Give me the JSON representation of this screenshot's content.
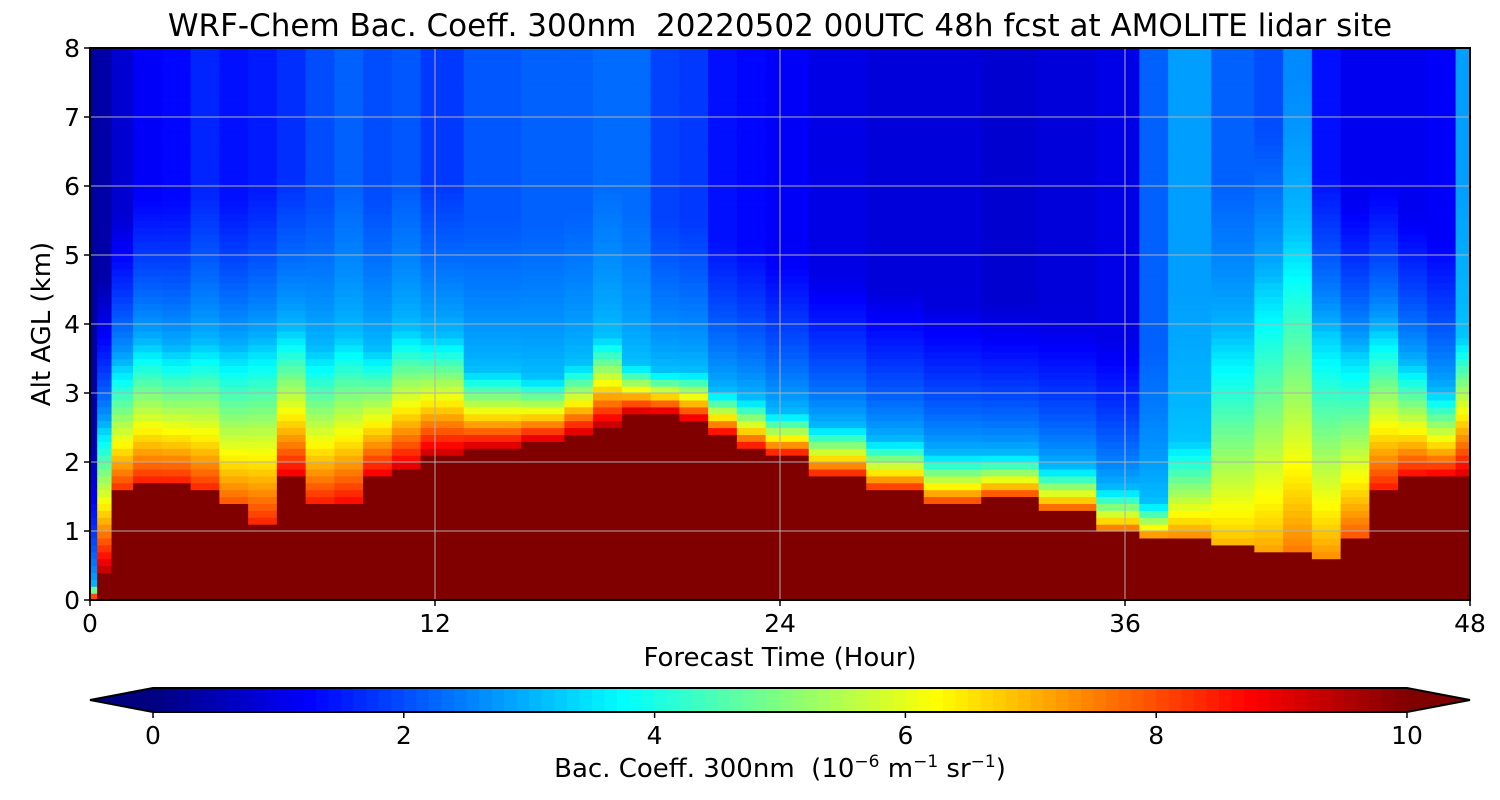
{
  "chart_data": {
    "type": "heatmap",
    "title": "WRF-Chem Bac. Coeff. 300nm  20220502 00UTC 48h fcst at AMOLITE lidar site",
    "xlabel": "Forecast Time (Hour)",
    "ylabel": "Alt AGL (km)",
    "xlim": [
      0,
      48
    ],
    "ylim": [
      0,
      8
    ],
    "xticks": [
      0,
      12,
      24,
      36,
      48
    ],
    "yticks": [
      0,
      1,
      2,
      3,
      4,
      5,
      6,
      7,
      8
    ],
    "grid": true,
    "colormap": "jet",
    "colorbar": {
      "orientation": "horizontal",
      "range": [
        0,
        10
      ],
      "ticks": [
        0,
        2,
        4,
        6,
        8,
        10
      ],
      "extend": "both",
      "label_prefix": "Bac. Coeff. 300nm  (10",
      "label_exp1": "−6",
      "label_mid": " m",
      "label_exp2": "−1",
      "label_mid2": " sr",
      "label_exp3": "−1",
      "label_suffix": ")"
    },
    "x": [
      0,
      0.5,
      1,
      2,
      3,
      4,
      5,
      6,
      7,
      8,
      9,
      10,
      11,
      12,
      14,
      16,
      17,
      18,
      19,
      20,
      21,
      22,
      23,
      24,
      26,
      28,
      30,
      32,
      34,
      36,
      37,
      38,
      40,
      41,
      42,
      43,
      44,
      45,
      46,
      47,
      48
    ],
    "y": [
      0,
      0.5,
      1,
      1.5,
      2,
      2.5,
      3,
      3.5,
      4,
      4.5,
      5,
      5.5,
      6,
      6.5,
      7,
      7.5,
      8
    ],
    "layer_top_km": [
      0,
      0.4,
      1.6,
      1.7,
      1.7,
      1.6,
      1.4,
      1.1,
      1.8,
      1.4,
      1.4,
      1.8,
      1.9,
      2.1,
      2.2,
      2.3,
      2.4,
      2.5,
      2.7,
      2.7,
      2.6,
      2.4,
      2.2,
      2.1,
      1.8,
      1.6,
      1.4,
      1.5,
      1.3,
      1.0,
      0.9,
      0.9,
      0.8,
      0.7,
      0.7,
      0.6,
      0.9,
      1.6,
      1.8,
      1.8,
      1.8
    ],
    "aerosol_top_km": [
      0.2,
      2.5,
      3.4,
      3.7,
      3.6,
      3.7,
      3.6,
      3.7,
      3.9,
      3.6,
      3.8,
      3.6,
      3.9,
      3.8,
      3.3,
      3.2,
      3.4,
      3.8,
      3.4,
      3.3,
      3.3,
      3.0,
      2.9,
      2.7,
      2.5,
      2.3,
      2.1,
      2.1,
      1.9,
      1.6,
      1.4,
      2.3,
      3.8,
      4.6,
      5.3,
      3.9,
      3.6,
      3.9,
      3.4,
      3.0,
      3.8
    ],
    "layer_top_value": [
      10,
      9.5,
      8.4,
      8.6,
      8.6,
      8.5,
      8.0,
      8.5,
      9.0,
      8.6,
      8.8,
      9.0,
      9.2,
      9.4,
      9.4,
      9.4,
      9.4,
      9.6,
      9.6,
      9.6,
      9.4,
      9.2,
      9.0,
      9.0,
      8.8,
      8.6,
      8.4,
      8.4,
      8.2,
      8.0,
      7.8,
      7.5,
      7.0,
      7.2,
      7.6,
      7.4,
      8.0,
      8.6,
      8.8,
      9.0,
      9.2
    ],
    "background_aloft": [
      0.3,
      0.4,
      0.8,
      1.2,
      1.3,
      1.6,
      1.4,
      1.5,
      1.7,
      2.0,
      2.2,
      2.0,
      2.1,
      1.8,
      2.1,
      2.2,
      2.2,
      2.3,
      2.3,
      1.9,
      1.8,
      1.4,
      1.3,
      1.2,
      1.0,
      0.9,
      0.9,
      0.8,
      0.9,
      1.0,
      2.2,
      2.8,
      2.2,
      2.0,
      2.6,
      1.4,
      1.1,
      1.1,
      1.1,
      1.2,
      2.8
    ],
    "low_level_min_value": 8.2
  }
}
